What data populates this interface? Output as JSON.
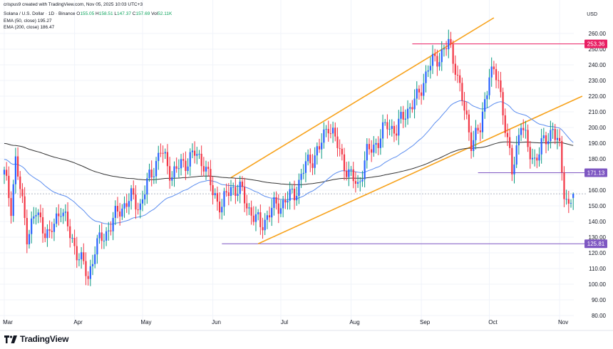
{
  "header": {
    "credit": "crispus9 created with TradingView.com, Nov 05, 2025 10:03 UTC+3",
    "symbol": "Solana / U.S. Dollar · 1D · Binance",
    "ohlc": {
      "o_label": "O",
      "o": "155.05",
      "h_label": "H",
      "h": "158.51",
      "l_label": "L",
      "l": "147.37",
      "c_label": "C",
      "c": "157.69",
      "vol_label": "Vol",
      "vol": "52.11K"
    },
    "ema50": {
      "label": "EMA (50, close)",
      "value": "195.27"
    },
    "ema200": {
      "label": "EMA (200, close)",
      "value": "186.47"
    },
    "currency": "USD"
  },
  "brand": {
    "name": "TradingView"
  },
  "colors": {
    "up": "#089981",
    "up_body": "#2962ff",
    "down": "#f23645",
    "ema50": "#5b8def",
    "ema200": "#333333",
    "channel": "#f7a21b",
    "resistance": "#e91e63",
    "support": "#7e57c2",
    "current": "#b0b7c3"
  },
  "chart_data": {
    "type": "candlestick",
    "ylim": [
      80,
      270
    ],
    "y_ticks": [
      "80.00",
      "90.00",
      "100.00",
      "110.00",
      "120.00",
      "130.00",
      "140.00",
      "150.00",
      "160.00",
      "170.00",
      "180.00",
      "190.00",
      "200.00",
      "210.00",
      "220.00",
      "230.00",
      "240.00",
      "250.00",
      "260.00"
    ],
    "x_ticks": [
      {
        "label": "Mar",
        "day": 0
      },
      {
        "label": "Apr",
        "day": 31
      },
      {
        "label": "May",
        "day": 61
      },
      {
        "label": "Jun",
        "day": 92
      },
      {
        "label": "Jul",
        "day": 122
      },
      {
        "label": "Aug",
        "day": 153
      },
      {
        "label": "Sep",
        "day": 184
      },
      {
        "label": "Oct",
        "day": 214
      },
      {
        "label": "Nov",
        "day": 245
      }
    ],
    "levels": [
      {
        "name": "resistance",
        "value": 253.36,
        "label": "253.36",
        "from_day": 180
      },
      {
        "name": "pivot",
        "value": 171.13,
        "label": "171.13",
        "from_day": 209
      },
      {
        "name": "support",
        "value": 125.81,
        "label": "125.81",
        "from_day": 96
      }
    ],
    "channel": {
      "lower": [
        [
          112,
          125.81
        ],
        [
          255,
          220
        ]
      ],
      "upper": [
        [
          100,
          168
        ],
        [
          216,
          270
        ]
      ]
    },
    "price_path": [
      [
        0,
        170
      ],
      [
        3,
        150
      ],
      [
        5,
        179
      ],
      [
        10,
        132
      ],
      [
        14,
        145
      ],
      [
        20,
        130
      ],
      [
        25,
        150
      ],
      [
        29,
        131
      ],
      [
        33,
        118
      ],
      [
        37,
        104
      ],
      [
        40,
        123
      ],
      [
        45,
        133
      ],
      [
        51,
        148
      ],
      [
        56,
        155
      ],
      [
        60,
        150
      ],
      [
        64,
        168
      ],
      [
        69,
        185
      ],
      [
        74,
        170
      ],
      [
        78,
        176
      ],
      [
        84,
        183
      ],
      [
        88,
        178
      ],
      [
        92,
        158
      ],
      [
        96,
        150
      ],
      [
        100,
        162
      ],
      [
        104,
        160
      ],
      [
        108,
        148
      ],
      [
        113,
        137
      ],
      [
        118,
        148
      ],
      [
        123,
        152
      ],
      [
        128,
        158
      ],
      [
        133,
        176
      ],
      [
        139,
        186
      ],
      [
        143,
        203
      ],
      [
        147,
        188
      ],
      [
        152,
        170
      ],
      [
        156,
        163
      ],
      [
        160,
        183
      ],
      [
        165,
        192
      ],
      [
        169,
        202
      ],
      [
        173,
        198
      ],
      [
        177,
        210
      ],
      [
        182,
        218
      ],
      [
        187,
        238
      ],
      [
        192,
        246
      ],
      [
        196,
        253
      ],
      [
        199,
        240
      ],
      [
        203,
        210
      ],
      [
        206,
        192
      ],
      [
        210,
        198
      ],
      [
        214,
        236
      ],
      [
        218,
        230
      ],
      [
        221,
        202
      ],
      [
        224,
        170
      ],
      [
        228,
        205
      ],
      [
        231,
        185
      ],
      [
        234,
        180
      ],
      [
        238,
        190
      ],
      [
        242,
        200
      ],
      [
        245,
        185
      ],
      [
        247,
        160
      ],
      [
        249,
        150
      ],
      [
        251,
        157.69
      ]
    ]
  }
}
